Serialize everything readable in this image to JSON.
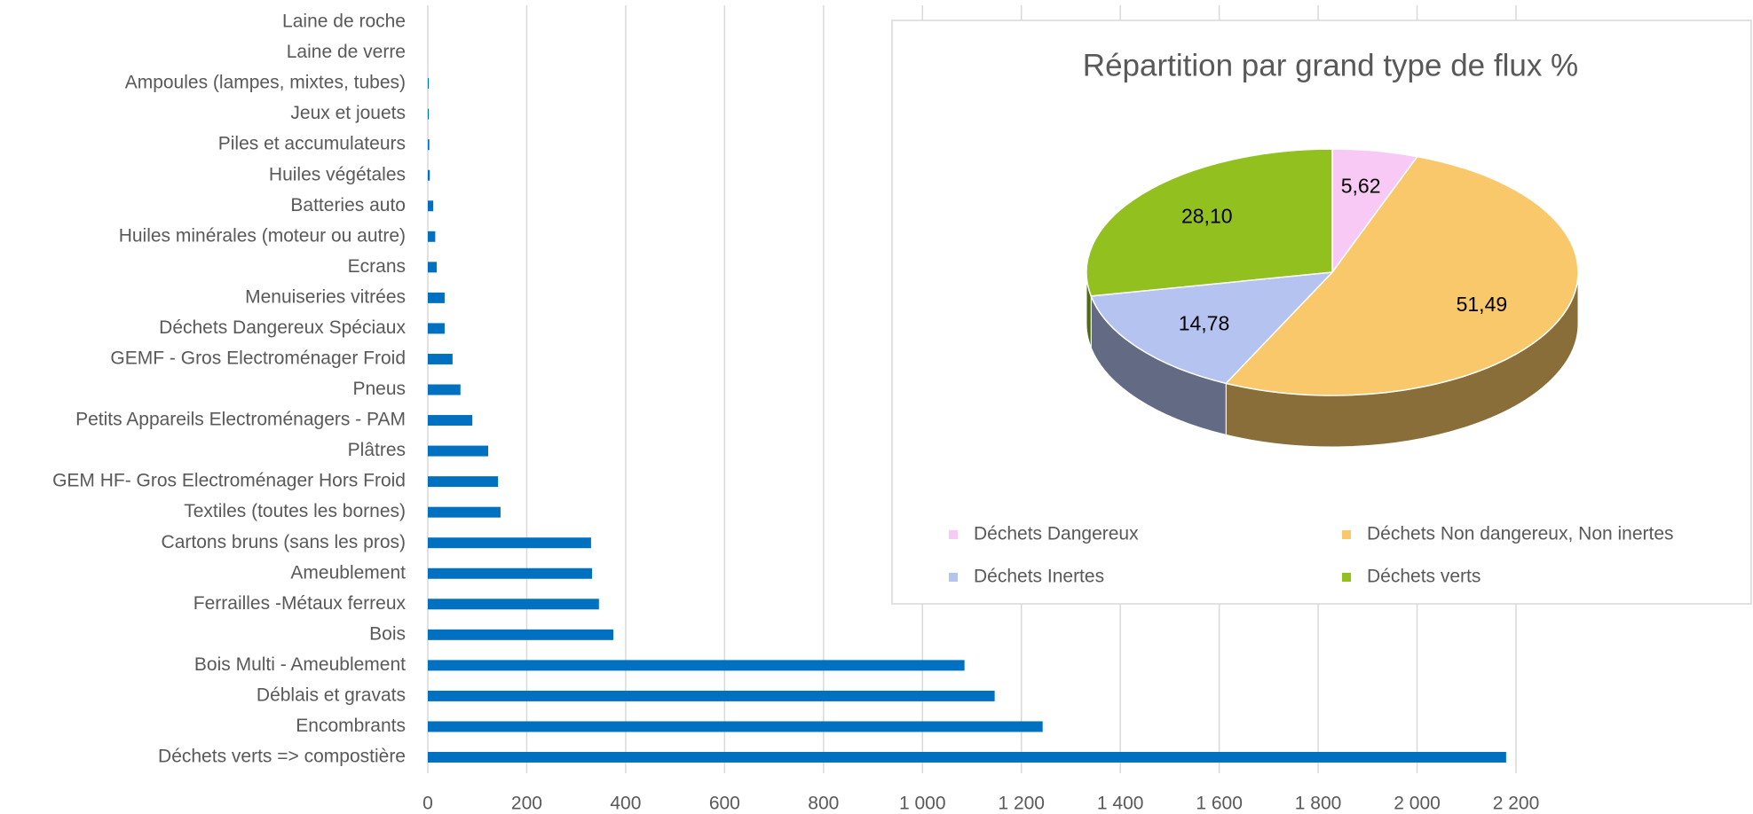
{
  "chart_data": [
    {
      "type": "hbar",
      "categories": [
        "Laine de roche",
        "Laine de verre",
        "Ampoules (lampes, mixtes, tubes)",
        "Jeux et jouets",
        "Piles et accumulateurs",
        "Huiles végétales",
        "Batteries auto",
        "Huiles minérales (moteur ou autre)",
        "Ecrans",
        "Menuiseries vitrées",
        "Déchets Dangereux Spéciaux",
        "GEMF - Gros Electroménager Froid",
        "Pneus",
        "Petits Appareils Electroménagers - PAM",
        "Plâtres",
        "GEM HF- Gros Electroménager Hors Froid",
        "Textiles (toutes les bornes)",
        "Cartons bruns (sans les pros)",
        "Ameublement",
        "Ferrailles -Métaux ferreux",
        "Bois",
        "Bois Multi - Ameublement",
        "Déblais et gravats",
        "Encombrants",
        "Déchets verts => compostière"
      ],
      "values": [
        0,
        0,
        2,
        2,
        3,
        4,
        11,
        15,
        18,
        34,
        34,
        50,
        66,
        90,
        122,
        142,
        147,
        330,
        332,
        346,
        375,
        1085,
        1146,
        1243,
        2180
      ],
      "color": "#0070c0",
      "xlim": [
        0,
        2200
      ],
      "xticks": [
        0,
        200,
        400,
        600,
        800,
        {
          "value": 1000,
          "label": "1 000"
        },
        {
          "value": 1200,
          "label": "1 200"
        },
        {
          "value": 1400,
          "label": "1 400"
        },
        {
          "value": 1600,
          "label": "1 600"
        },
        {
          "value": 1800,
          "label": "1 800"
        },
        {
          "value": 2000,
          "label": "2 000"
        },
        {
          "value": 2200,
          "label": "2 200"
        }
      ],
      "grid": true
    },
    {
      "type": "pie3d",
      "title": "Répartition par grand type de flux %",
      "categories": [
        "Déchets Dangereux",
        "Déchets Non dangereux, Non inertes",
        "Déchets Inertes",
        "Déchets verts"
      ],
      "values": [
        5.62,
        51.49,
        14.78,
        28.1
      ],
      "value_labels": [
        "5,62",
        "51,49",
        "14,78",
        "28,10"
      ],
      "colors": [
        "#f9c9f5",
        "#f9c86a",
        "#b4c3f0",
        "#92c01f"
      ],
      "legend": "bottom"
    }
  ]
}
